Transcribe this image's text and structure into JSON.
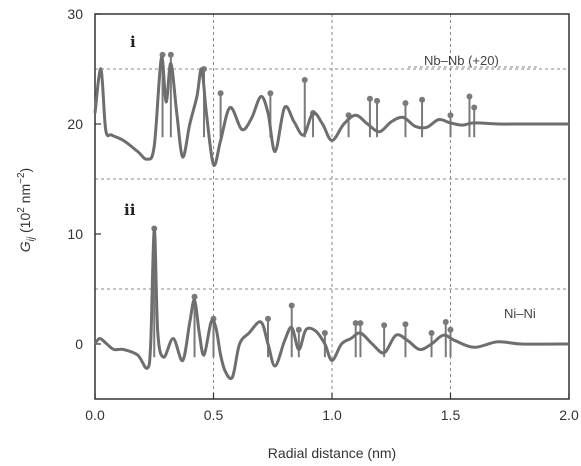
{
  "chart_data": {
    "type": "line",
    "xlabel": "Radial distance (nm)",
    "ylabel": "G_ij (10² nm⁻²)",
    "ylabel_main": "G",
    "ylabel_sub": "ij",
    "ylabel_rest": " (10",
    "ylabel_sup1": "2",
    "ylabel_unit": " nm",
    "ylabel_sup2": "−2",
    "ylabel_close": ")",
    "xlim": [
      0,
      2.0
    ],
    "ylim": [
      -5,
      30
    ],
    "x_ticks": [
      "0.0",
      "0.5",
      "1.0",
      "1.5",
      "2.0"
    ],
    "y_ticks": [
      "0",
      "10",
      "20",
      "30"
    ],
    "x_tick_values": [
      0,
      0.5,
      1.0,
      1.5,
      2.0
    ],
    "y_tick_values": [
      0,
      10,
      20,
      30
    ],
    "grid_x": [
      0.5,
      1.0,
      1.5
    ],
    "grid_y": [
      5,
      15,
      25
    ],
    "panels": [
      {
        "label": "i",
        "series_name": "Nb–Nb (+20)",
        "curve": [
          [
            0,
            21
          ],
          [
            0.025,
            25
          ],
          [
            0.045,
            19.5
          ],
          [
            0.07,
            19
          ],
          [
            0.12,
            18.5
          ],
          [
            0.18,
            17.5
          ],
          [
            0.22,
            16.8
          ],
          [
            0.25,
            18
          ],
          [
            0.28,
            26
          ],
          [
            0.3,
            22
          ],
          [
            0.32,
            25.5
          ],
          [
            0.345,
            21
          ],
          [
            0.37,
            17
          ],
          [
            0.4,
            20
          ],
          [
            0.43,
            22.5
          ],
          [
            0.45,
            25
          ],
          [
            0.47,
            21
          ],
          [
            0.5,
            16.3
          ],
          [
            0.53,
            18.5
          ],
          [
            0.57,
            21.5
          ],
          [
            0.62,
            19.5
          ],
          [
            0.66,
            20.5
          ],
          [
            0.7,
            22.5
          ],
          [
            0.73,
            21
          ],
          [
            0.76,
            17.5
          ],
          [
            0.8,
            21.5
          ],
          [
            0.84,
            20.2
          ],
          [
            0.88,
            19
          ],
          [
            0.92,
            21
          ],
          [
            0.96,
            20
          ],
          [
            1.0,
            18.5
          ],
          [
            1.05,
            20
          ],
          [
            1.1,
            20.8
          ],
          [
            1.15,
            20
          ],
          [
            1.2,
            19.3
          ],
          [
            1.25,
            20.2
          ],
          [
            1.3,
            20.6
          ],
          [
            1.35,
            19.8
          ],
          [
            1.4,
            19.7
          ],
          [
            1.45,
            20.4
          ],
          [
            1.5,
            20.1
          ],
          [
            1.55,
            19.9
          ],
          [
            1.6,
            20.1
          ],
          [
            1.7,
            20
          ],
          [
            1.8,
            20
          ],
          [
            2.0,
            20
          ]
        ],
        "sticks": [
          [
            0.285,
            26.3
          ],
          [
            0.32,
            26.3
          ],
          [
            0.46,
            25
          ],
          [
            0.53,
            22.8
          ],
          [
            0.74,
            22.8
          ],
          [
            0.885,
            24
          ],
          [
            0.92,
            21
          ],
          [
            1.07,
            20.8
          ],
          [
            1.16,
            22.3
          ],
          [
            1.19,
            22.1
          ],
          [
            1.31,
            21.9
          ],
          [
            1.38,
            22.2
          ],
          [
            1.5,
            20.8
          ],
          [
            1.58,
            22.5
          ],
          [
            1.6,
            21.5
          ]
        ]
      },
      {
        "label": "ii",
        "series_name": "Ni–Ni",
        "curve": [
          [
            0,
            0
          ],
          [
            0.02,
            0.5
          ],
          [
            0.05,
            0
          ],
          [
            0.08,
            -0.5
          ],
          [
            0.12,
            -0.5
          ],
          [
            0.18,
            -1
          ],
          [
            0.22,
            -2.2
          ],
          [
            0.235,
            0
          ],
          [
            0.25,
            10.5
          ],
          [
            0.265,
            1
          ],
          [
            0.29,
            -1.2
          ],
          [
            0.33,
            0.5
          ],
          [
            0.37,
            -1.5
          ],
          [
            0.4,
            2
          ],
          [
            0.42,
            4
          ],
          [
            0.44,
            1
          ],
          [
            0.46,
            -1
          ],
          [
            0.49,
            2
          ],
          [
            0.51,
            1.5
          ],
          [
            0.53,
            -1
          ],
          [
            0.55,
            -2.5
          ],
          [
            0.58,
            -3
          ],
          [
            0.61,
            0
          ],
          [
            0.65,
            1
          ],
          [
            0.7,
            2
          ],
          [
            0.73,
            0
          ],
          [
            0.76,
            -2
          ],
          [
            0.8,
            0.3
          ],
          [
            0.83,
            1.5
          ],
          [
            0.86,
            -0.5
          ],
          [
            0.89,
            1.3
          ],
          [
            0.93,
            1.2
          ],
          [
            0.97,
            0
          ],
          [
            1.0,
            -1.5
          ],
          [
            1.04,
            0
          ],
          [
            1.08,
            0.5
          ],
          [
            1.12,
            1
          ],
          [
            1.17,
            0
          ],
          [
            1.22,
            -0.8
          ],
          [
            1.27,
            0.8
          ],
          [
            1.32,
            0.3
          ],
          [
            1.37,
            -0.5
          ],
          [
            1.42,
            0
          ],
          [
            1.47,
            0.8
          ],
          [
            1.52,
            0.3
          ],
          [
            1.6,
            -0.3
          ],
          [
            1.7,
            0.2
          ],
          [
            1.8,
            0
          ],
          [
            2.0,
            0
          ]
        ],
        "sticks": [
          [
            0.25,
            10.5
          ],
          [
            0.42,
            4.3
          ],
          [
            0.5,
            2.3
          ],
          [
            0.73,
            2.3
          ],
          [
            0.83,
            3.5
          ],
          [
            0.86,
            1.3
          ],
          [
            0.97,
            1.0
          ],
          [
            1.1,
            1.9
          ],
          [
            1.12,
            1.9
          ],
          [
            1.22,
            1.7
          ],
          [
            1.31,
            1.8
          ],
          [
            1.42,
            1.0
          ],
          [
            1.48,
            2.0
          ],
          [
            1.5,
            1.3
          ]
        ]
      }
    ],
    "colors": {
      "curve": "#6e6e6e",
      "stick": "#7a7a7a",
      "grid": "#8a8a8a",
      "axis": "#333333"
    }
  }
}
